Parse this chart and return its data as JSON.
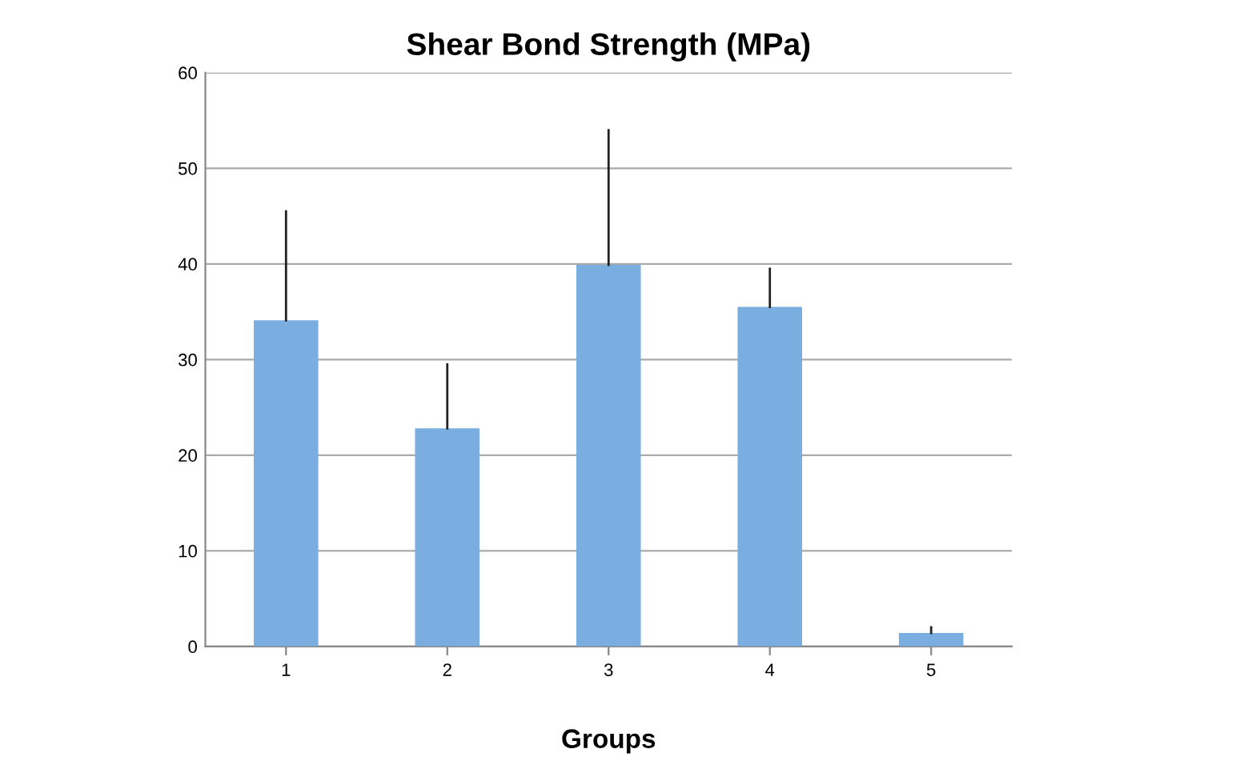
{
  "chart_data": {
    "type": "bar",
    "title": "Shear Bond Strength (MPa)",
    "xlabel": "Groups",
    "categories": [
      "1",
      "2",
      "3",
      "4",
      "5"
    ],
    "values": [
      34.1,
      22.8,
      39.9,
      35.5,
      1.4
    ],
    "errors": [
      [
        34.1,
        45.5
      ],
      [
        22.8,
        29.5
      ],
      [
        39.9,
        54.0
      ],
      [
        35.5,
        39.5
      ],
      [
        1.4,
        2.0
      ]
    ],
    "color": "#7aaee0",
    "ylim": [
      0,
      60
    ],
    "yticks": [
      0,
      10,
      20,
      30,
      40,
      50,
      60
    ],
    "grid": "y",
    "legend": false
  }
}
